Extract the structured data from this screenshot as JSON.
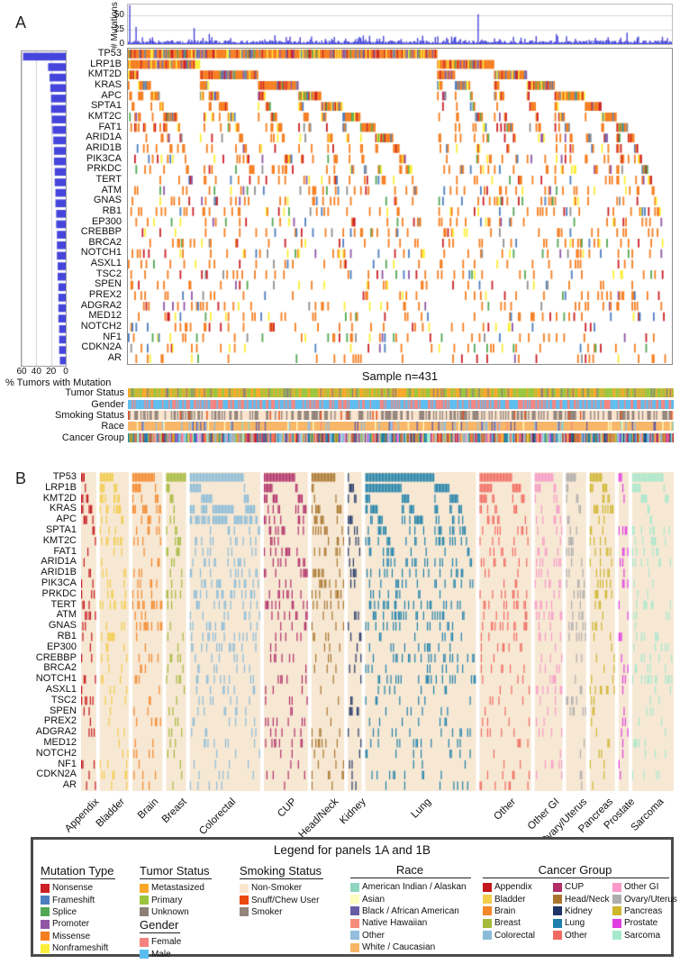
{
  "figure": {
    "panel_a": "A",
    "panel_b": "B",
    "sample_label": "Sample n=431"
  },
  "chart_data": {
    "type": "heatmap",
    "n_samples": 431,
    "top_bar_chart": {
      "ylabel": "# Mutations",
      "yticks": [
        0,
        25,
        50
      ],
      "ylim": [
        0,
        69
      ],
      "bar_color": "#4545DC",
      "spikes": [
        {
          "i": 1,
          "v": 68
        },
        {
          "i": 6,
          "v": 30
        },
        {
          "i": 52,
          "v": 28
        },
        {
          "i": 277,
          "v": 52
        },
        {
          "i": 395,
          "v": 20
        }
      ]
    },
    "left_bar_chart": {
      "xlabel": "% Tumors with Mutation",
      "xticks": [
        60,
        40,
        20,
        0
      ],
      "xlim": [
        60,
        0
      ],
      "bar_color": "#4545DC"
    },
    "genes": [
      {
        "name": "TP53",
        "pct": 58
      },
      {
        "name": "LRP1B",
        "pct": 24
      },
      {
        "name": "KMT2D",
        "pct": 22
      },
      {
        "name": "KRAS",
        "pct": 21
      },
      {
        "name": "APC",
        "pct": 20
      },
      {
        "name": "SPTA1",
        "pct": 20
      },
      {
        "name": "KMT2C",
        "pct": 19
      },
      {
        "name": "FAT1",
        "pct": 18
      },
      {
        "name": "ARID1A",
        "pct": 17
      },
      {
        "name": "ARID1B",
        "pct": 16
      },
      {
        "name": "PIK3CA",
        "pct": 16
      },
      {
        "name": "PRKDC",
        "pct": 15
      },
      {
        "name": "TERT",
        "pct": 15
      },
      {
        "name": "ATM",
        "pct": 14
      },
      {
        "name": "GNAS",
        "pct": 14
      },
      {
        "name": "RB1",
        "pct": 13
      },
      {
        "name": "EP300",
        "pct": 13
      },
      {
        "name": "CREBBP",
        "pct": 12
      },
      {
        "name": "BRCA2",
        "pct": 12
      },
      {
        "name": "NOTCH1",
        "pct": 12
      },
      {
        "name": "ASXL1",
        "pct": 11
      },
      {
        "name": "TSC2",
        "pct": 11
      },
      {
        "name": "SPEN",
        "pct": 10
      },
      {
        "name": "PREX2",
        "pct": 10
      },
      {
        "name": "ADGRA2",
        "pct": 10
      },
      {
        "name": "MED12",
        "pct": 10
      },
      {
        "name": "NOTCH2",
        "pct": 9
      },
      {
        "name": "NF1",
        "pct": 9
      },
      {
        "name": "CDKN2A",
        "pct": 9
      },
      {
        "name": "AR",
        "pct": 8
      }
    ],
    "mutation_types": [
      {
        "label": "Nonsense",
        "color": "#CB2026"
      },
      {
        "label": "Frameshift",
        "color": "#4D7EBE"
      },
      {
        "label": "Splice",
        "color": "#53A854"
      },
      {
        "label": "Promoter",
        "color": "#8F57A5"
      },
      {
        "label": "Missense",
        "color": "#F57E20"
      },
      {
        "label": "Nonframeshift",
        "color": "#FCEE3A"
      }
    ],
    "mutation_color_weights": [
      {
        "color": "#F57E20",
        "weight": 0.58
      },
      {
        "color": "#CB2026",
        "weight": 0.11
      },
      {
        "color": "#FCEE3A",
        "weight": 0.11
      },
      {
        "color": "#4D7EBE",
        "weight": 0.08
      },
      {
        "color": "#53A854",
        "weight": 0.05
      },
      {
        "color": "#8F57A5",
        "weight": 0.04
      },
      {
        "color": "#8F8F8F",
        "weight": 0.03
      }
    ],
    "annotation_track_labels": [
      "Tumor Status",
      "Gender",
      "Smoking Status",
      "Race",
      "Cancer Group"
    ],
    "tumor_status": [
      {
        "label": "Metastasized",
        "color": "#F7A829",
        "weight": 0.4
      },
      {
        "label": "Primary",
        "color": "#9BC53D",
        "weight": 0.47
      },
      {
        "label": "Unknown",
        "color": "#8A8076",
        "weight": 0.13
      }
    ],
    "gender": [
      {
        "label": "Female",
        "color": "#F5837D",
        "weight": 0.38
      },
      {
        "label": "Male",
        "color": "#5ABDF0",
        "weight": 0.62
      }
    ],
    "smoking_status": [
      {
        "label": "Non-Smoker",
        "color": "#FBE4CE",
        "weight": 0.5
      },
      {
        "label": "Snuff/Chew User",
        "color": "#E9480F",
        "weight": 0.04
      },
      {
        "label": "Smoker",
        "color": "#93857B",
        "weight": 0.46
      }
    ],
    "race": [
      {
        "label": "American Indian / Alaskan",
        "color": "#8FD6C1",
        "weight": 0.02
      },
      {
        "label": "Asian",
        "color": "#FEFCBF",
        "weight": 0.03
      },
      {
        "label": "Black / African American",
        "color": "#685DA5",
        "weight": 0.07
      },
      {
        "label": "Native Hawaiian",
        "color": "#F68D7B",
        "weight": 0.02
      },
      {
        "label": "Other",
        "color": "#93BEDC",
        "weight": 0.06
      },
      {
        "label": "White / Caucasian",
        "color": "#F8B566",
        "weight": 0.8
      }
    ],
    "cancer_groups": [
      {
        "label": "Appendix",
        "color": "#C4161C",
        "count": 12
      },
      {
        "label": "Bladder",
        "color": "#F3CC49",
        "count": 23
      },
      {
        "label": "Brain",
        "color": "#F58629",
        "count": 24
      },
      {
        "label": "Breast",
        "color": "#A4BA3B",
        "count": 16
      },
      {
        "label": "Colorectal",
        "color": "#8ABCDA",
        "count": 56
      },
      {
        "label": "CUP",
        "color": "#B02D68",
        "count": 35
      },
      {
        "label": "Head/Neck",
        "color": "#A9752D",
        "count": 26
      },
      {
        "label": "Kidney",
        "color": "#1F3467",
        "count": 11
      },
      {
        "label": "Lung",
        "color": "#1C80AB",
        "count": 88
      },
      {
        "label": "Other",
        "color": "#F26A60",
        "count": 41
      },
      {
        "label": "Other GI",
        "color": "#F79AC8",
        "count": 22
      },
      {
        "label": "Ovary/Uterus",
        "color": "#ADADAD",
        "count": 16
      },
      {
        "label": "Pancreas",
        "color": "#CFB62F",
        "count": 20
      },
      {
        "label": "Prostate",
        "color": "#E13EE1",
        "count": 8
      },
      {
        "label": "Sarcoma",
        "color": "#A6E9CD",
        "count": 33
      }
    ],
    "panel_b_bg": "#F7E8D4",
    "group_gene_boost": {
      "Colorectal": {
        "TP53": 1.3,
        "KRAS": 3.2,
        "APC": 3.8
      },
      "Lung": {
        "TP53": 1.05,
        "LRP1B": 1.8,
        "KRAS": 1.4
      },
      "Brain": {
        "TERT": 2.4
      },
      "Breast": {
        "TP53": 1.2,
        "PIK3CA": 2.2,
        "KRAS": 0.3
      },
      "CUP": {
        "TP53": 1.2
      },
      "Appendix": {
        "KRAS": 2.4,
        "TP53": 0.6
      },
      "Kidney": {
        "TP53": 0.45,
        "KRAS": 0.25
      },
      "Prostate": {
        "KRAS": 0.3
      },
      "Sarcoma": {
        "TP53": 1.0,
        "KRAS": 0.25,
        "APC": 0.4
      },
      "Bladder": {
        "TERT": 2.0,
        "KMT2D": 1.5
      },
      "Head/Neck": {
        "TP53": 1.25
      },
      "Pancreas": {
        "KRAS": 2.8,
        "TP53": 1.1
      }
    }
  },
  "legend": {
    "title": "Legend for panels 1A and 1B",
    "sections": [
      {
        "title": "Mutation Type",
        "ref": "mutation_types"
      },
      {
        "title": "Tumor Status",
        "ref": "tumor_status"
      },
      {
        "title": "Gender",
        "ref": "gender"
      },
      {
        "title": "Smoking Status",
        "ref": "smoking_status"
      },
      {
        "title": "Race",
        "ref": "race"
      },
      {
        "title": "Cancer Group",
        "ref": "cancer_groups"
      }
    ]
  }
}
